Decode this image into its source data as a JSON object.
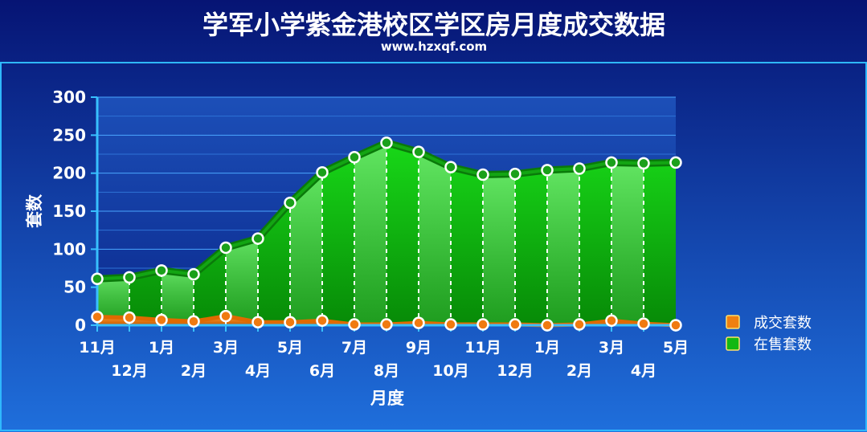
{
  "header": {
    "title": "学军小学紫金港校区学区房月度成交数据",
    "subtitle": "www.hzxqf.com"
  },
  "colors": {
    "background_top": "#0a1a7a",
    "background_bottom": "#1c6ad8",
    "panel_border": "#28b6ff",
    "sold_fill": "#f07a10",
    "listing_fill": "#12c412",
    "listing_dark": "#0a8a0a",
    "marker": "#ffffff"
  },
  "chart_data": {
    "type": "area",
    "xlabel": "月度",
    "ylabel": "套数",
    "ylim": [
      0,
      300
    ],
    "yticks": [
      0,
      50,
      100,
      150,
      200,
      250,
      300
    ],
    "categories": [
      "11月",
      "12月",
      "1月",
      "2月",
      "3月",
      "4月",
      "5月",
      "6月",
      "7月",
      "8月",
      "9月",
      "10月",
      "11月",
      "12月",
      "1月",
      "2月",
      "3月",
      "4月",
      "5月"
    ],
    "series": [
      {
        "name": "成交套数",
        "color": "#f08010",
        "values": [
          11,
          10,
          7,
          5,
          12,
          4,
          4,
          6,
          1,
          1,
          3,
          1,
          1,
          1,
          0,
          1,
          6,
          2,
          0
        ]
      },
      {
        "name": "在售套数",
        "color": "#12b812",
        "values": [
          61,
          63,
          72,
          67,
          102,
          114,
          161,
          201,
          221,
          240,
          228,
          208,
          198,
          199,
          204,
          206,
          214,
          213,
          214
        ]
      }
    ],
    "legend_position": "right",
    "grid": true
  }
}
